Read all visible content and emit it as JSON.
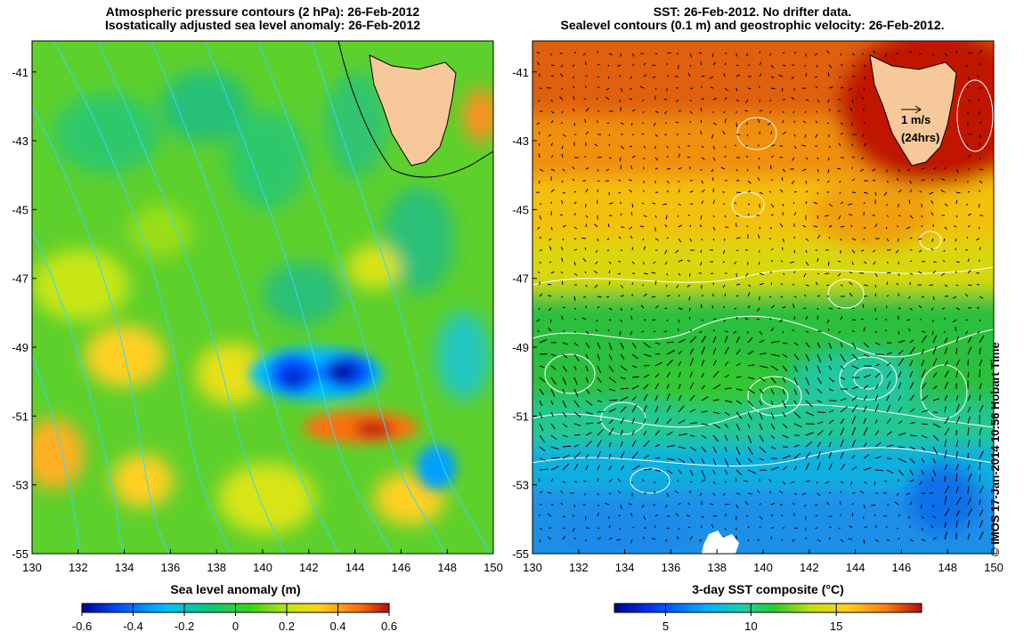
{
  "left_panel": {
    "title_line1": "Atmospheric pressure contours (2 hPa): 26-Feb-2012",
    "title_line2": "Isostatically adjusted sea level anomaly: 26-Feb-2012",
    "lat_labels": [
      "-41",
      "-43",
      "-45",
      "-47",
      "-49",
      "-51",
      "-53",
      "-55"
    ],
    "lon_labels": [
      "130",
      "132",
      "134",
      "136",
      "138",
      "140",
      "142",
      "144",
      "146",
      "148",
      "150"
    ],
    "colorbar": {
      "title": "Sea level anomaly (m)",
      "range": [
        -0.6,
        0.6
      ],
      "ticks": [
        "-0.6",
        "-0.4",
        "-0.2",
        "0",
        "0.2",
        "0.4",
        "0.6"
      ],
      "colors": [
        "#00008f",
        "#0050ff",
        "#00c0ff",
        "#10c870",
        "#3ed21a",
        "#c8e614",
        "#ffd020",
        "#ff7010",
        "#b01010"
      ]
    }
  },
  "right_panel": {
    "title_line1": "SST: 26-Feb-2012. No drifter data.",
    "title_line2": "Sealevel contours (0.1 m) and geostrophic velocity: 26-Feb-2012.",
    "lat_labels": [
      "-41",
      "-43",
      "-45",
      "-47",
      "-49",
      "-51",
      "-53",
      "-55"
    ],
    "lon_labels": [
      "130",
      "132",
      "134",
      "136",
      "138",
      "140",
      "142",
      "144",
      "146",
      "148",
      "150"
    ],
    "velocity_scale": {
      "label": "1 m/s",
      "sublabel": "(24hrs)"
    },
    "colorbar": {
      "title": "3-day SST composite (°C)",
      "range": [
        2,
        20
      ],
      "ticks": [
        "5",
        "10",
        "15"
      ],
      "colors": [
        "#00008f",
        "#0040ff",
        "#00b0ff",
        "#20d0a0",
        "#30c830",
        "#c0e010",
        "#ffd020",
        "#ff8010",
        "#b01010"
      ]
    }
  },
  "credit": "© IMOS 17-Jan-2014 10:56 Hobart Time",
  "colors": {
    "land": "#f7c99a",
    "sst_warm": "#c81400",
    "sst_mid": "#f5b800",
    "sst_cool": "#3cbf42",
    "sst_cold": "#1a9fe0",
    "sla_base": "#5dd02c"
  }
}
